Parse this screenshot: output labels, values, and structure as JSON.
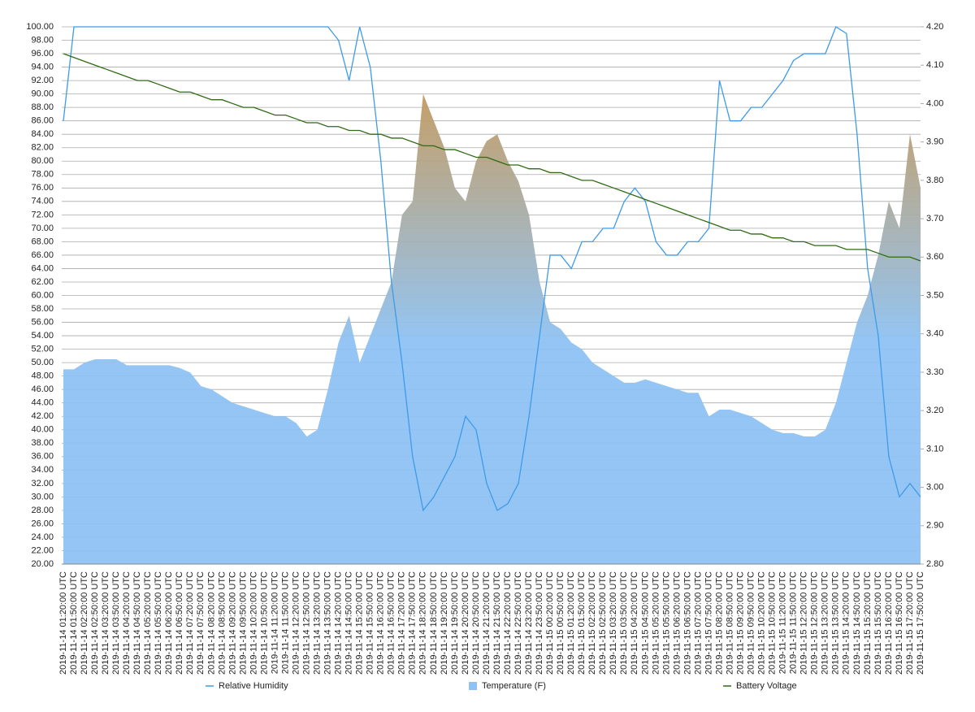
{
  "chart_data": {
    "type": "line",
    "categories": [
      "2019-11-14 01:20:00 UTC",
      "2019-11-14 01:50:00 UTC",
      "2019-11-14 02:20:00 UTC",
      "2019-11-14 02:50:00 UTC",
      "2019-11-14 03:20:00 UTC",
      "2019-11-14 03:50:00 UTC",
      "2019-11-14 04:20:00 UTC",
      "2019-11-14 04:50:00 UTC",
      "2019-11-14 05:20:00 UTC",
      "2019-11-14 05:50:00 UTC",
      "2019-11-14 06:20:00 UTC",
      "2019-11-14 06:50:00 UTC",
      "2019-11-14 07:20:00 UTC",
      "2019-11-14 07:50:00 UTC",
      "2019-11-14 08:20:00 UTC",
      "2019-11-14 08:50:00 UTC",
      "2019-11-14 09:20:00 UTC",
      "2019-11-14 09:50:00 UTC",
      "2019-11-14 10:20:00 UTC",
      "2019-11-14 10:50:00 UTC",
      "2019-11-14 11:20:00 UTC",
      "2019-11-14 11:50:00 UTC",
      "2019-11-14 12:20:00 UTC",
      "2019-11-14 12:50:00 UTC",
      "2019-11-14 13:20:00 UTC",
      "2019-11-14 13:50:00 UTC",
      "2019-11-14 14:20:00 UTC",
      "2019-11-14 14:50:00 UTC",
      "2019-11-14 15:20:00 UTC",
      "2019-11-14 15:50:00 UTC",
      "2019-11-14 16:20:00 UTC",
      "2019-11-14 16:50:00 UTC",
      "2019-11-14 17:20:00 UTC",
      "2019-11-14 17:50:00 UTC",
      "2019-11-14 18:20:00 UTC",
      "2019-11-14 18:50:00 UTC",
      "2019-11-14 19:20:00 UTC",
      "2019-11-14 19:50:00 UTC",
      "2019-11-14 20:20:00 UTC",
      "2019-11-14 20:50:00 UTC",
      "2019-11-14 21:20:00 UTC",
      "2019-11-14 21:50:00 UTC",
      "2019-11-14 22:20:00 UTC",
      "2019-11-14 22:50:00 UTC",
      "2019-11-14 23:20:00 UTC",
      "2019-11-14 23:50:00 UTC",
      "2019-11-15 00:20:00 UTC",
      "2019-11-15 00:50:00 UTC",
      "2019-11-15 01:20:00 UTC",
      "2019-11-15 01:50:00 UTC",
      "2019-11-15 02:20:00 UTC",
      "2019-11-15 02:50:00 UTC",
      "2019-11-15 03:20:00 UTC",
      "2019-11-15 03:50:00 UTC",
      "2019-11-15 04:20:00 UTC",
      "2019-11-15 04:50:00 UTC",
      "2019-11-15 05:20:00 UTC",
      "2019-11-15 05:50:00 UTC",
      "2019-11-15 06:20:00 UTC",
      "2019-11-15 06:50:00 UTC",
      "2019-11-15 07:20:00 UTC",
      "2019-11-15 07:50:00 UTC",
      "2019-11-15 08:20:00 UTC",
      "2019-11-15 08:50:00 UTC",
      "2019-11-15 09:20:00 UTC",
      "2019-11-15 09:50:00 UTC",
      "2019-11-15 10:20:00 UTC",
      "2019-11-15 10:50:00 UTC",
      "2019-11-15 11:20:00 UTC",
      "2019-11-15 11:50:00 UTC",
      "2019-11-15 12:20:00 UTC",
      "2019-11-15 12:50:00 UTC",
      "2019-11-15 13:20:00 UTC",
      "2019-11-15 13:50:00 UTC",
      "2019-11-15 14:20:00 UTC",
      "2019-11-15 14:50:00 UTC",
      "2019-11-15 15:20:00 UTC",
      "2019-11-15 15:50:00 UTC",
      "2019-11-15 16:20:00 UTC",
      "2019-11-15 16:50:00 UTC",
      "2019-11-15 17:20:00 UTC",
      "2019-11-15 17:50:00 UTC"
    ],
    "series": [
      {
        "name": "Temperature (F)",
        "kind": "area",
        "color": "#8ec2f3",
        "top_color": "#c8954f",
        "values": [
          49,
          49,
          50,
          50.5,
          50.5,
          50.5,
          49.6,
          49.6,
          49.6,
          49.6,
          49.6,
          49.2,
          48.5,
          46.5,
          46,
          45,
          44,
          43.5,
          43,
          42.5,
          42,
          42,
          41,
          39,
          40,
          46,
          53,
          57,
          50,
          54,
          58,
          62,
          72,
          74,
          90,
          86,
          82,
          76,
          74,
          80,
          83,
          84,
          80,
          77,
          72,
          62,
          56,
          55,
          53,
          52,
          50,
          49,
          48,
          47,
          47,
          47.5,
          47,
          46.5,
          46,
          45.5,
          45.5,
          42,
          43,
          43,
          42.5,
          42,
          41,
          40,
          39.5,
          39.5,
          39,
          39,
          40,
          44,
          50,
          56,
          60,
          66,
          74,
          70,
          84,
          76
        ]
      },
      {
        "name": "Relative Humidity",
        "kind": "line",
        "color": "#3d9be9",
        "values": [
          86,
          100,
          100,
          100,
          100,
          100,
          100,
          100,
          100,
          100,
          100,
          100,
          100,
          100,
          100,
          100,
          100,
          100,
          100,
          100,
          100,
          100,
          100,
          100,
          100,
          100,
          98,
          92,
          100,
          94,
          80,
          62,
          50,
          36,
          28,
          30,
          33,
          36,
          42,
          40,
          32,
          28,
          29,
          32,
          42,
          54,
          66,
          66,
          64,
          68,
          68,
          70,
          70,
          74,
          76,
          74,
          68,
          66,
          66,
          68,
          68,
          70,
          92,
          86,
          86,
          88,
          88,
          90,
          92,
          95,
          96,
          96,
          96,
          100,
          99,
          84,
          64,
          54,
          36,
          30,
          32,
          30
        ]
      },
      {
        "name": "Battery Voltage",
        "kind": "line",
        "axis": "y2",
        "color": "#2e6b12",
        "values": [
          4.13,
          4.12,
          4.11,
          4.1,
          4.09,
          4.08,
          4.07,
          4.06,
          4.06,
          4.05,
          4.04,
          4.03,
          4.03,
          4.02,
          4.01,
          4.01,
          4.0,
          3.99,
          3.99,
          3.98,
          3.97,
          3.97,
          3.96,
          3.95,
          3.95,
          3.94,
          3.94,
          3.93,
          3.93,
          3.92,
          3.92,
          3.91,
          3.91,
          3.9,
          3.89,
          3.89,
          3.88,
          3.88,
          3.87,
          3.86,
          3.86,
          3.85,
          3.84,
          3.84,
          3.83,
          3.83,
          3.82,
          3.82,
          3.81,
          3.8,
          3.8,
          3.79,
          3.78,
          3.77,
          3.76,
          3.75,
          3.74,
          3.73,
          3.72,
          3.71,
          3.7,
          3.69,
          3.68,
          3.67,
          3.67,
          3.66,
          3.66,
          3.65,
          3.65,
          3.64,
          3.64,
          3.63,
          3.63,
          3.63,
          3.62,
          3.62,
          3.62,
          3.61,
          3.6,
          3.6,
          3.6,
          3.59
        ]
      }
    ],
    "ylim": [
      20,
      100
    ],
    "yticks": [
      {
        "value": 20,
        "label": "20.00"
      },
      {
        "value": 22,
        "label": "22.00"
      },
      {
        "value": 24,
        "label": "24.00"
      },
      {
        "value": 26,
        "label": "26.00"
      },
      {
        "value": 28,
        "label": "28.00"
      },
      {
        "value": 30,
        "label": "30.00"
      },
      {
        "value": 32,
        "label": "32.00"
      },
      {
        "value": 34,
        "label": "34.00"
      },
      {
        "value": 36,
        "label": "36.00"
      },
      {
        "value": 38,
        "label": "38.00"
      },
      {
        "value": 40,
        "label": "40.00"
      },
      {
        "value": 42,
        "label": "42.00"
      },
      {
        "value": 44,
        "label": "44.00"
      },
      {
        "value": 46,
        "label": "46.00"
      },
      {
        "value": 48,
        "label": "48.00"
      },
      {
        "value": 50,
        "label": "50.00"
      },
      {
        "value": 52,
        "label": "52.00"
      },
      {
        "value": 54,
        "label": "54.00"
      },
      {
        "value": 56,
        "label": "56.00"
      },
      {
        "value": 58,
        "label": "58.00"
      },
      {
        "value": 60,
        "label": "60.00"
      },
      {
        "value": 62,
        "label": "62.00"
      },
      {
        "value": 64,
        "label": "64.00"
      },
      {
        "value": 66,
        "label": "66.00"
      },
      {
        "value": 68,
        "label": "68.00"
      },
      {
        "value": 70,
        "label": "70.00"
      },
      {
        "value": 72,
        "label": "72.00"
      },
      {
        "value": 74,
        "label": "74.00"
      },
      {
        "value": 76,
        "label": "76.00"
      },
      {
        "value": 78,
        "label": "78.00"
      },
      {
        "value": 80,
        "label": "80.00"
      },
      {
        "value": 82,
        "label": "82.00"
      },
      {
        "value": 84,
        "label": "84.00"
      },
      {
        "value": 86,
        "label": "86.00"
      },
      {
        "value": 88,
        "label": "88.00"
      },
      {
        "value": 90,
        "label": "90.00"
      },
      {
        "value": 92,
        "label": "92.00"
      },
      {
        "value": 94,
        "label": "94.00"
      },
      {
        "value": 96,
        "label": "96.00"
      },
      {
        "value": 98,
        "label": "98.00"
      },
      {
        "value": 100,
        "label": "100.00"
      }
    ],
    "y2lim": [
      2.8,
      4.2
    ],
    "y2ticks": [
      {
        "value": 2.8,
        "label": "2.80"
      },
      {
        "value": 2.9,
        "label": "2.90"
      },
      {
        "value": 3.0,
        "label": "3.00"
      },
      {
        "value": 3.1,
        "label": "3.10"
      },
      {
        "value": 3.2,
        "label": "3.20"
      },
      {
        "value": 3.3,
        "label": "3.30"
      },
      {
        "value": 3.4,
        "label": "3.40"
      },
      {
        "value": 3.5,
        "label": "3.50"
      },
      {
        "value": 3.6,
        "label": "3.60"
      },
      {
        "value": 3.7,
        "label": "3.70"
      },
      {
        "value": 3.8,
        "label": "3.80"
      },
      {
        "value": 3.9,
        "label": "3.90"
      },
      {
        "value": 4.0,
        "label": "4.00"
      },
      {
        "value": 4.1,
        "label": "4.10"
      },
      {
        "value": 4.2,
        "label": "4.20"
      }
    ],
    "grid": true,
    "legend": "bottom"
  }
}
